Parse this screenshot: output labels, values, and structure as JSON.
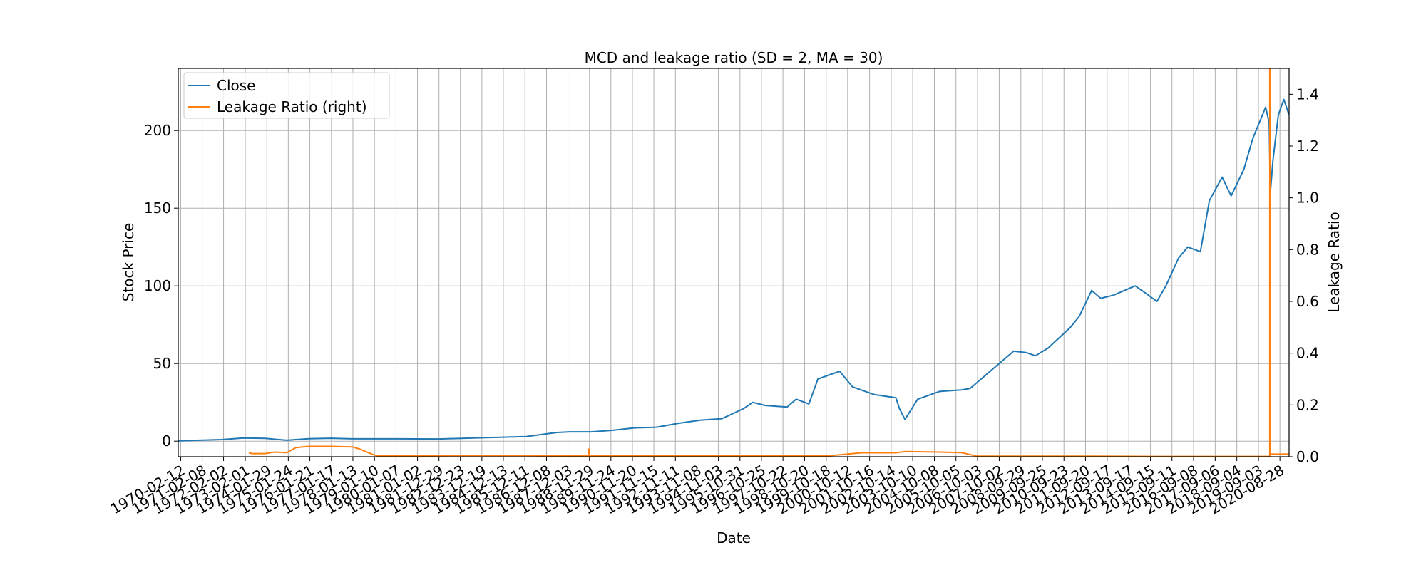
{
  "chart_data": {
    "type": "line",
    "title": "MCD and leakage ratio (SD = 2, MA = 30)",
    "xlabel": "Date",
    "ylabel": "Stock Price",
    "ylabel_right": "Leakage Ratio",
    "xlim": [
      "1970-01-02",
      "2021-01-29"
    ],
    "ylim": [
      -10,
      240
    ],
    "ylim_right": [
      0.0,
      1.5
    ],
    "yticks": [
      0,
      50,
      100,
      150,
      200
    ],
    "yticks_right": [
      "0.0",
      "0.2",
      "0.4",
      "0.6",
      "0.8",
      "1.0",
      "1.2",
      "1.4"
    ],
    "grid": true,
    "legend_position": "top-left",
    "x_tick_labels": [
      "1970-02-12",
      "1971-02-08",
      "1972-02-02",
      "1973-02-01",
      "1974-01-29",
      "1975-01-24",
      "1976-01-21",
      "1977-01-17",
      "1978-01-13",
      "1979-01-10",
      "1980-01-07",
      "1981-01-02",
      "1981-12-29",
      "1982-12-23",
      "1983-12-19",
      "1984-12-13",
      "1985-12-11",
      "1986-12-08",
      "1987-12-03",
      "1988-11-29",
      "1989-11-24",
      "1990-11-20",
      "1991-11-15",
      "1992-11-11",
      "1993-11-08",
      "1994-11-03",
      "1995-10-31",
      "1996-10-25",
      "1997-10-22",
      "1998-10-20",
      "1999-10-18",
      "2000-10-12",
      "2001-10-16",
      "2002-10-14",
      "2003-10-10",
      "2004-10-08",
      "2005-10-05",
      "2006-10-03",
      "2007-10-02",
      "2008-09-29",
      "2009-09-25",
      "2010-09-23",
      "2011-09-20",
      "2012-09-17",
      "2013-09-17",
      "2014-09-15",
      "2015-09-11",
      "2016-09-08",
      "2017-09-06",
      "2018-09-04",
      "2019-09-03",
      "2020-08-28"
    ],
    "series": [
      {
        "name": "Close",
        "axis": "left",
        "color": "#1f77b4",
        "x": [
          "1970-01-02",
          "1972-01-01",
          "1973-01-01",
          "1974-01-01",
          "1975-01-01",
          "1976-01-01",
          "1977-01-01",
          "1978-01-01",
          "1980-01-01",
          "1982-01-01",
          "1984-01-01",
          "1986-01-01",
          "1987-06-01",
          "1988-01-01",
          "1989-01-01",
          "1990-01-01",
          "1991-01-01",
          "1992-01-01",
          "1993-01-01",
          "1994-01-01",
          "1995-01-01",
          "1996-01-01",
          "1996-06-01",
          "1997-01-01",
          "1998-01-01",
          "1998-06-01",
          "1999-01-01",
          "1999-06-01",
          "2000-01-01",
          "2000-06-01",
          "2001-01-01",
          "2002-01-01",
          "2003-01-01",
          "2003-03-01",
          "2003-06-01",
          "2004-01-01",
          "2005-01-01",
          "2006-01-01",
          "2006-06-01",
          "2007-01-01",
          "2007-06-01",
          "2008-01-01",
          "2008-06-01",
          "2009-01-01",
          "2009-06-01",
          "2010-01-01",
          "2011-01-01",
          "2011-06-01",
          "2012-01-01",
          "2012-06-01",
          "2013-01-01",
          "2014-01-01",
          "2014-06-01",
          "2015-01-01",
          "2015-06-01",
          "2016-01-01",
          "2016-06-01",
          "2017-01-01",
          "2017-06-01",
          "2018-01-01",
          "2018-06-01",
          "2019-01-01",
          "2019-06-01",
          "2020-01-01",
          "2020-03-01",
          "2020-03-20",
          "2020-05-01",
          "2020-08-01",
          "2020-11-01",
          "2021-01-29"
        ],
        "y": [
          0.2,
          1.0,
          2.0,
          1.8,
          0.6,
          1.6,
          1.9,
          1.5,
          1.5,
          1.4,
          2.2,
          3.0,
          5.6,
          6.0,
          6.0,
          7.0,
          8.6,
          9.0,
          11.5,
          13.5,
          14.5,
          21.0,
          25.0,
          23.0,
          22.0,
          27.0,
          24.0,
          40.0,
          43.0,
          45.0,
          35.0,
          30.0,
          28.0,
          21.0,
          14.0,
          27.0,
          32.0,
          33.0,
          34.0,
          41.0,
          46.0,
          53.0,
          58.0,
          57.0,
          55.0,
          60.0,
          73.0,
          80.0,
          97.0,
          92.0,
          94.0,
          100.0,
          96.0,
          90.0,
          100.0,
          118.0,
          125.0,
          122.0,
          155.0,
          170.0,
          158.0,
          175.0,
          195.0,
          215.0,
          205.0,
          160.0,
          180.0,
          210.0,
          220.0,
          210.0
        ]
      },
      {
        "name": "Leakage Ratio (right)",
        "axis": "right",
        "color": "#ff7f0e",
        "x": [
          "1973-04-01",
          "1973-06-01",
          "1974-01-01",
          "1974-06-01",
          "1975-01-01",
          "1975-06-01",
          "1976-01-01",
          "1977-01-01",
          "1978-01-01",
          "1978-05-01",
          "1978-12-01",
          "1979-03-01",
          "1980-01-01",
          "1983-01-01",
          "1986-01-01",
          "1988-06-01",
          "1988-11-15",
          "1988-11-20",
          "1988-11-25",
          "1990-01-01",
          "1995-01-01",
          "2000-01-01",
          "2001-06-01",
          "2003-01-01",
          "2003-06-01",
          "2005-01-01",
          "2006-01-01",
          "2006-10-01",
          "2008-01-01",
          "2012-01-01",
          "2015-01-01",
          "2020-03-01",
          "2020-03-10",
          "2020-03-11",
          "2020-03-14",
          "2020-03-16",
          "2020-03-30",
          "2021-01-29"
        ],
        "y": [
          0.015,
          0.012,
          0.012,
          0.018,
          0.016,
          0.035,
          0.04,
          0.04,
          0.038,
          0.03,
          0.01,
          0.003,
          0.003,
          0.005,
          0.005,
          0.003,
          0.003,
          0.03,
          0.003,
          0.004,
          0.004,
          0.004,
          0.015,
          0.015,
          0.02,
          0.018,
          0.016,
          0.002,
          0.002,
          0.002,
          0.001,
          0.001,
          0.001,
          1.5,
          1.5,
          0.01,
          0.01,
          0.01
        ]
      }
    ]
  }
}
